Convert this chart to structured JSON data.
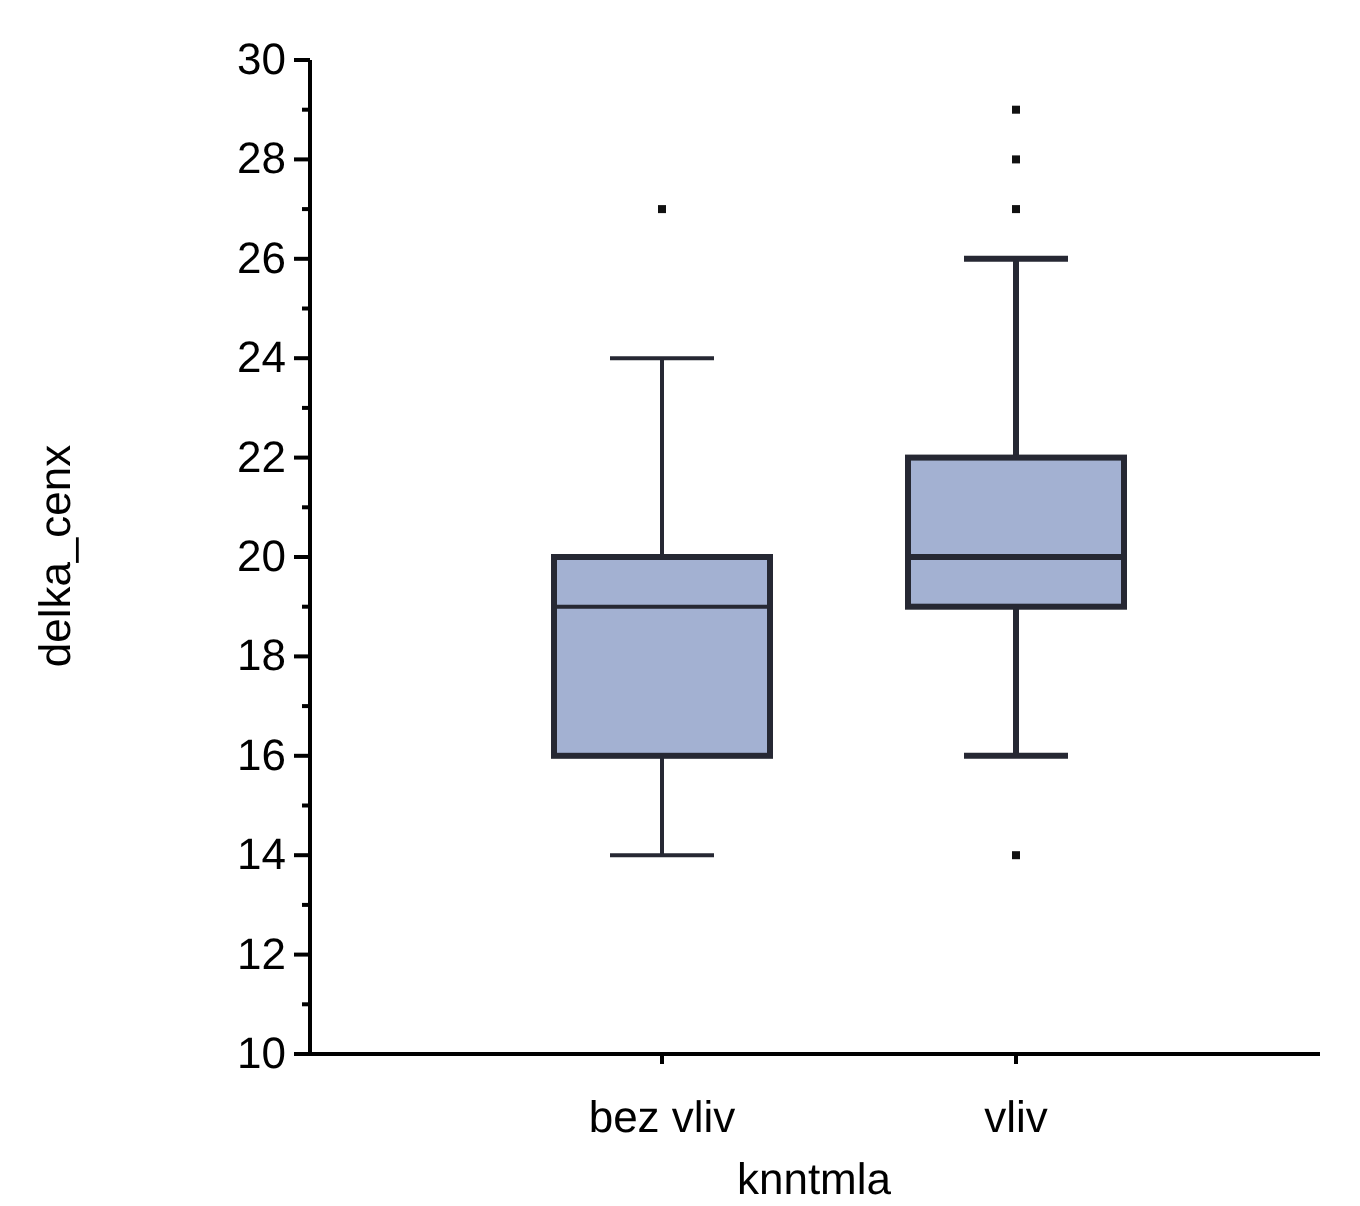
{
  "chart_data": {
    "type": "box",
    "xlabel": "knntmla",
    "ylabel": "delka_cenx",
    "categories": [
      "bez vliv",
      "vliv"
    ],
    "boxes": [
      {
        "low": 14,
        "q1": 16,
        "median": 19,
        "q3": 20,
        "high": 24,
        "outliers": [
          27
        ]
      },
      {
        "low": 16,
        "q1": 19,
        "median": 20,
        "q3": 22,
        "high": 26,
        "outliers": [
          27,
          28,
          29,
          14
        ]
      }
    ],
    "color": "#a3b1d2",
    "ylim": [
      10,
      30
    ],
    "yticks": [
      10,
      {
        "value": 11,
        "label": null
      },
      12,
      {
        "value": 13,
        "label": null
      },
      14,
      {
        "value": 15,
        "label": null
      },
      16,
      {
        "value": 17,
        "label": null
      },
      18,
      {
        "value": 19,
        "label": null
      },
      20,
      {
        "value": 21,
        "label": null
      },
      22,
      {
        "value": 23,
        "label": null
      },
      24,
      {
        "value": 25,
        "label": null
      },
      26,
      {
        "value": 27,
        "label": null
      },
      28,
      {
        "value": 29,
        "label": null
      },
      30
    ],
    "grid": false
  }
}
